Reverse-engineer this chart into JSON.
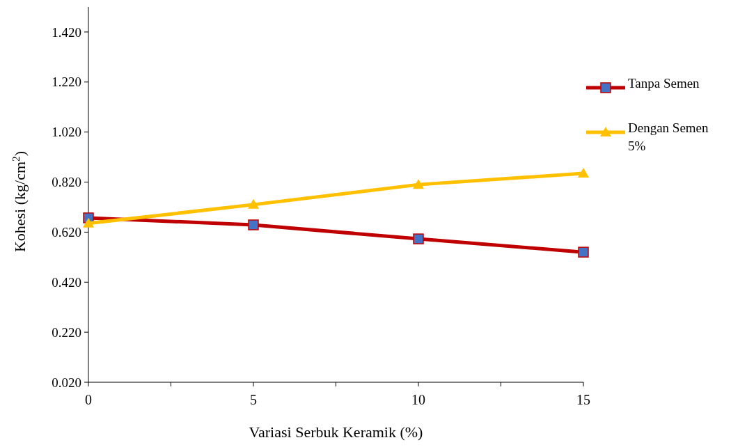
{
  "chart_data": {
    "type": "line",
    "xlabel": "Variasi Serbuk Keramik (%)",
    "ylabel": "Kohesi (kg/cm$^{2}$)",
    "x": [
      0,
      5,
      10,
      15
    ],
    "series": [
      {
        "name": "Tanpa Semen",
        "color": "#c00000",
        "marker": "square",
        "values": [
          0.677,
          0.649,
          0.593,
          0.54
        ]
      },
      {
        "name": "Dengan Semen 5%",
        "color": "#ffc000",
        "marker": "triangle",
        "values": [
          0.655,
          0.73,
          0.81,
          0.855
        ]
      }
    ],
    "xlim": [
      0,
      15
    ],
    "xticks": [
      0,
      {
        "value": 2.5,
        "label": null
      },
      5,
      {
        "value": 7.5,
        "label": null
      },
      10,
      {
        "value": 12.5,
        "label": null
      },
      15
    ],
    "ylim": [
      0.02,
      1.52
    ],
    "yticks": [
      {
        "value": 0.02,
        "label": "0.020"
      },
      {
        "value": 0.22,
        "label": "0.220"
      },
      {
        "value": 0.42,
        "label": "0.420"
      },
      {
        "value": 0.62,
        "label": "0.620"
      },
      {
        "value": 0.82,
        "label": "0.820"
      },
      {
        "value": 1.02,
        "label": "1.020"
      },
      {
        "value": 1.22,
        "label": "1.220"
      },
      {
        "value": 1.42,
        "label": "1.420"
      }
    ],
    "grid": false,
    "legend": "right",
    "line_style": "solid"
  }
}
